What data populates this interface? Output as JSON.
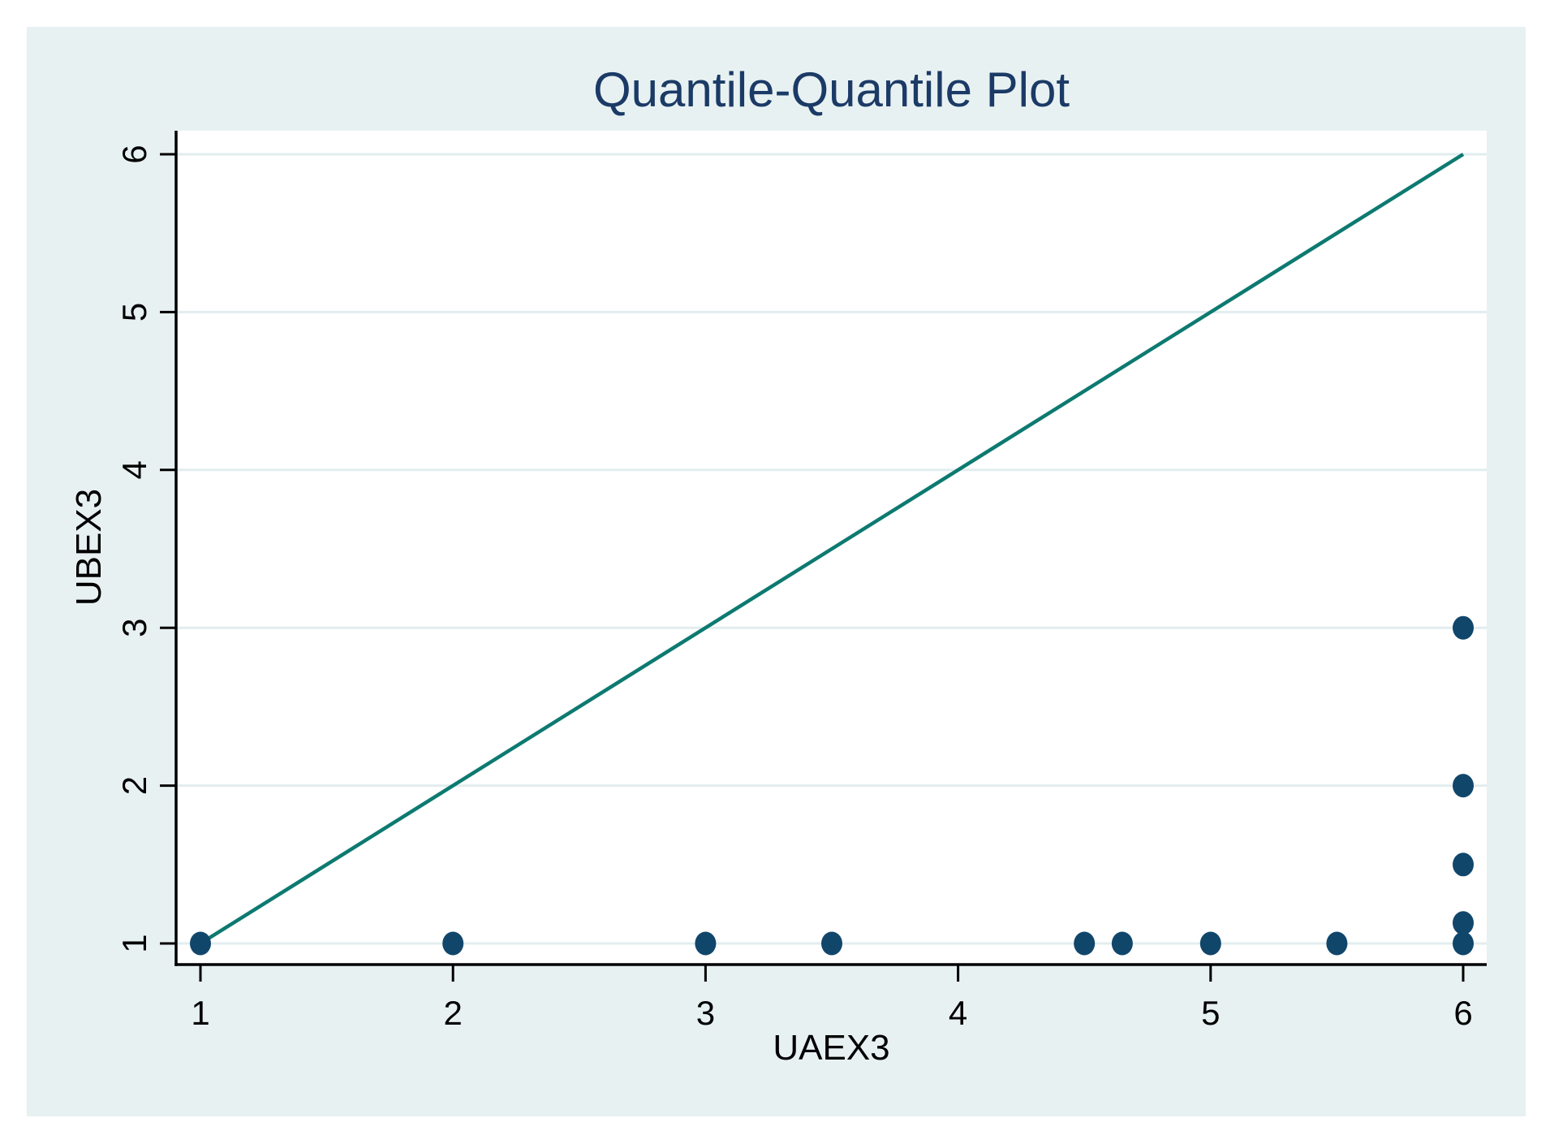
{
  "chart_data": {
    "type": "scatter",
    "title": "Quantile-Quantile Plot",
    "xlabel": "UAEX3",
    "ylabel": "UBEX3",
    "xlim": [
      1,
      6
    ],
    "ylim": [
      1,
      6
    ],
    "xticks": [
      1,
      2,
      3,
      4,
      5,
      6
    ],
    "yticks": [
      1,
      2,
      3,
      4,
      5,
      6
    ],
    "grid": "horizontal-only",
    "legend": "none",
    "points": [
      [
        1,
        1
      ],
      [
        2,
        1
      ],
      [
        3,
        1
      ],
      [
        3.5,
        1
      ],
      [
        4.5,
        1
      ],
      [
        4.65,
        1
      ],
      [
        5,
        1
      ],
      [
        5.5,
        1
      ],
      [
        6,
        1
      ],
      [
        6,
        1.13
      ],
      [
        6,
        1.5
      ],
      [
        6,
        2
      ],
      [
        6,
        3
      ]
    ],
    "reference_line": {
      "x1": 1,
      "y1": 1,
      "x2": 6,
      "y2": 6
    },
    "marker": {
      "shape": "circle",
      "color": "#11466b"
    },
    "line_color": "#0d7a70",
    "colors": {
      "canvas_background": "#e8f1f2",
      "plot_background": "#ffffff",
      "gridline": "#e2edef",
      "axis": "#000000",
      "title": "#1b3a66",
      "tick_label": "#000000"
    }
  }
}
